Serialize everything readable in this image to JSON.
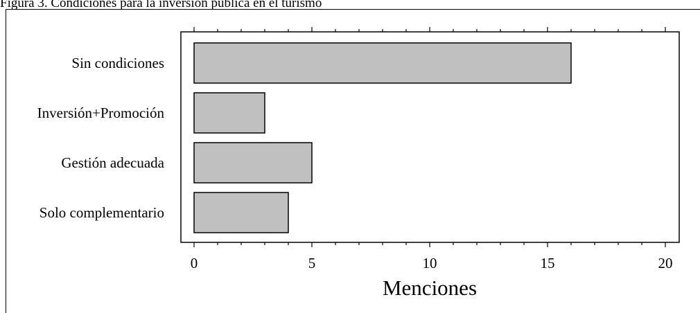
{
  "caption": "Figura 3. Condiciones para la inversión pública en el turismo",
  "chart_data": {
    "type": "bar",
    "orientation": "horizontal",
    "categories": [
      "Sin condiciones",
      "Inversión+Promoción",
      "Gestión adecuada",
      "Solo complementario"
    ],
    "values": [
      16,
      3,
      5,
      4
    ],
    "xlabel": "Menciones",
    "ylabel": "",
    "xlim": [
      0,
      20
    ],
    "xticks": [
      0,
      5,
      10,
      15,
      20
    ],
    "grid": false,
    "legend": "none",
    "bar_color": "#c0c0c0",
    "bar_edge_color": "#000000"
  }
}
